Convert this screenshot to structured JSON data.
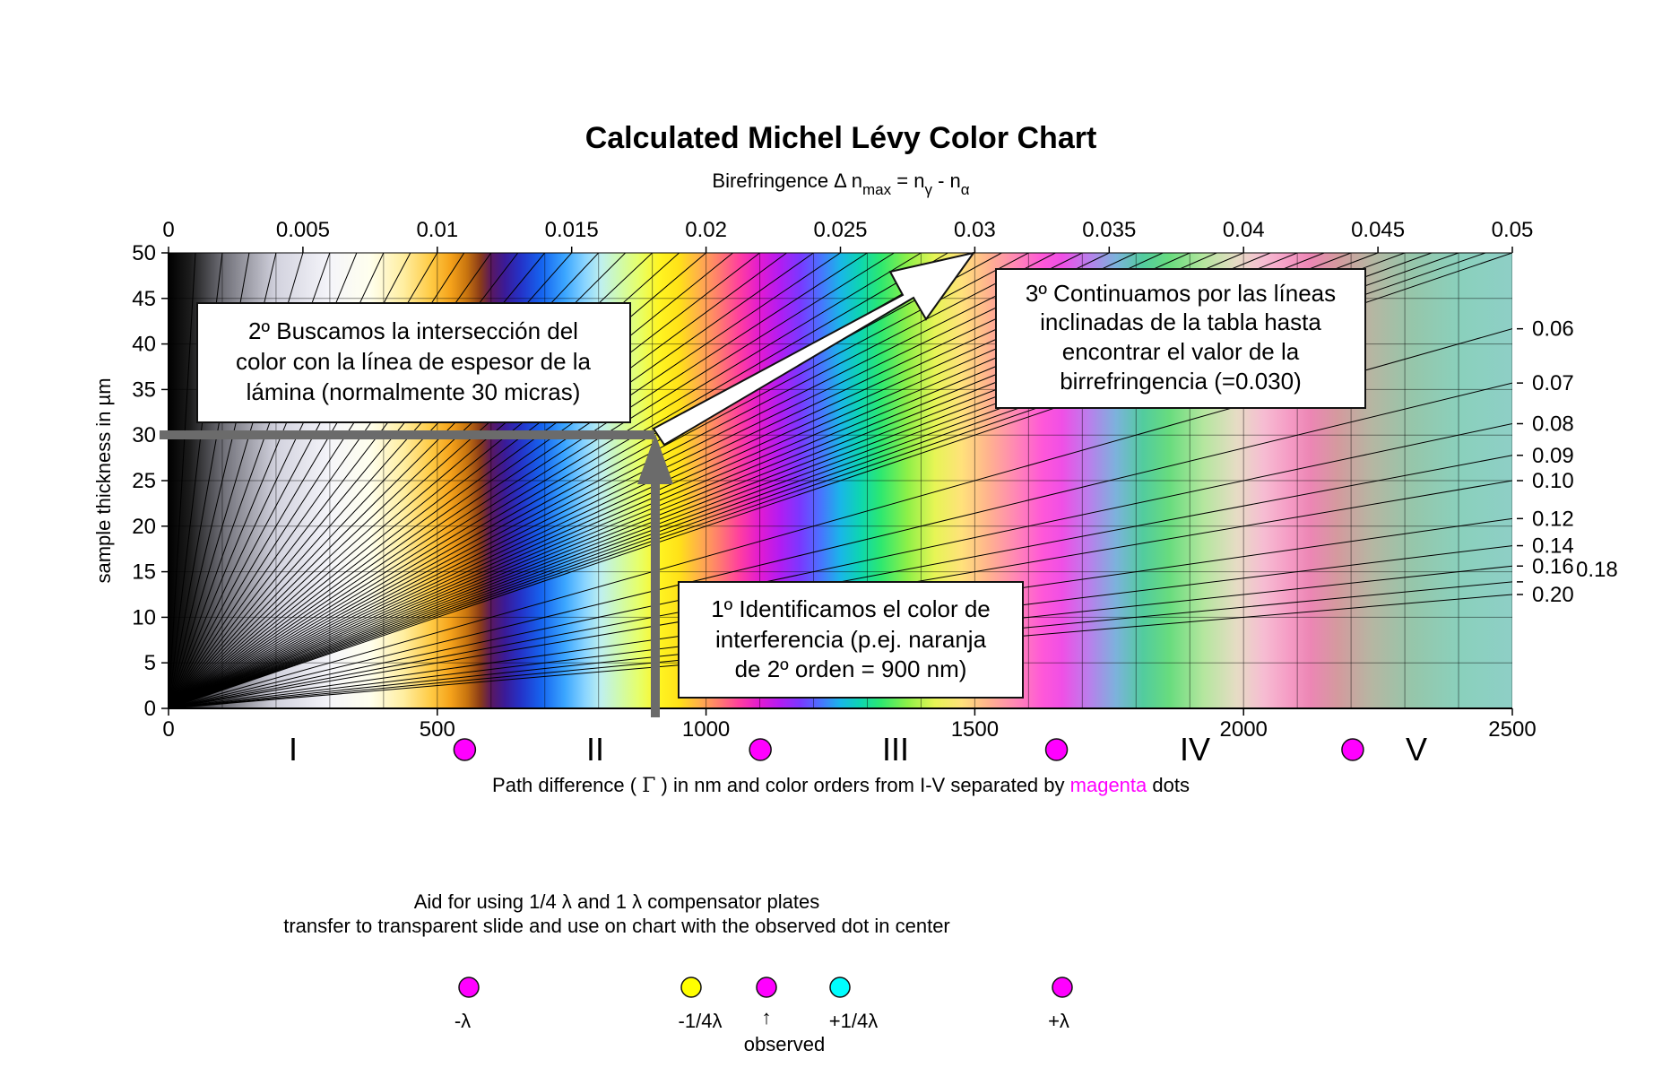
{
  "chart_data": {
    "type": "heatmap",
    "title": "Calculated Michel Lévy Color Chart",
    "top_axis": {
      "label_parts": [
        "Birefringence ",
        "Δ",
        " n",
        "max",
        " = n",
        "γ",
        " - n",
        "α"
      ],
      "ticks": [
        "0",
        "0.005",
        "0.01",
        "0.015",
        "0.02",
        "0.025",
        "0.03",
        "0.035",
        "0.04",
        "0.045",
        "0.05"
      ],
      "range": [
        0,
        0.05
      ]
    },
    "y_axis": {
      "label": "sample thickness in µm",
      "ticks": [
        "0",
        "5",
        "10",
        "15",
        "20",
        "25",
        "30",
        "35",
        "40",
        "45",
        "50"
      ],
      "range": [
        0,
        50
      ]
    },
    "x_axis": {
      "label_before": "Path difference ( ",
      "label_gamma": "Γ",
      "label_mid": " ) in nm and color orders from I-V separated by ",
      "label_magenta": "magenta",
      "label_after": " dots",
      "ticks": [
        "0",
        "500",
        "1000",
        "1500",
        "2000",
        "2500"
      ],
      "range": [
        0,
        2500
      ]
    },
    "color_orders": [
      "I",
      "II",
      "III",
      "IV",
      "V"
    ],
    "order_separator_dots_nm": [
      551,
      1101,
      1652,
      2203
    ],
    "right_birefringence_labels": [
      "0.06",
      "0.07",
      "0.08",
      "0.09",
      "0.10",
      "0.12",
      "0.14",
      "0.16",
      "0.18",
      "0.20"
    ],
    "right_birefringence_values": [
      0.06,
      0.07,
      0.08,
      0.09,
      0.1,
      0.12,
      0.14,
      0.16,
      0.18,
      0.2
    ],
    "grid": true,
    "colors": {
      "magenta": "#ff00ff",
      "yellow": "#ffff00",
      "cyan": "#00ffff",
      "guide": "#6b6b6b"
    },
    "annotations": [
      {
        "id": "step1",
        "text_lines": [
          "1º Identificamos el color de",
          "interferencia (p.ej. naranja",
          "de 2º orden = 900 nm)"
        ],
        "path_difference_nm": 900
      },
      {
        "id": "step2",
        "text_lines": [
          "2º Buscamos la intersección del",
          "color con la línea de espesor de la",
          "lámina (normalmente 30 micras)"
        ],
        "thickness_um": 30
      },
      {
        "id": "step3",
        "text_lines": [
          "3º Continuamos por las líneas",
          "inclinadas de la tabla hasta",
          "encontrar el valor de la",
          "birrefringencia (=0.030)"
        ],
        "birefringence": 0.03
      }
    ]
  },
  "aid": {
    "line1": "Aid for using 1/4 λ and 1 λ compensator plates",
    "line2": "transfer to transparent slide and use on chart with the observed dot in center",
    "dots": [
      {
        "label": "-λ",
        "color": "#ff00ff"
      },
      {
        "label": "-1/4λ",
        "color": "#ffff00"
      },
      {
        "label": "",
        "color": "#ff00ff"
      },
      {
        "label": "+1/4λ",
        "color": "#00ffff"
      },
      {
        "label": "+λ",
        "color": "#ff00ff"
      }
    ],
    "observed_arrow": "↑",
    "observed_label": "observed"
  }
}
